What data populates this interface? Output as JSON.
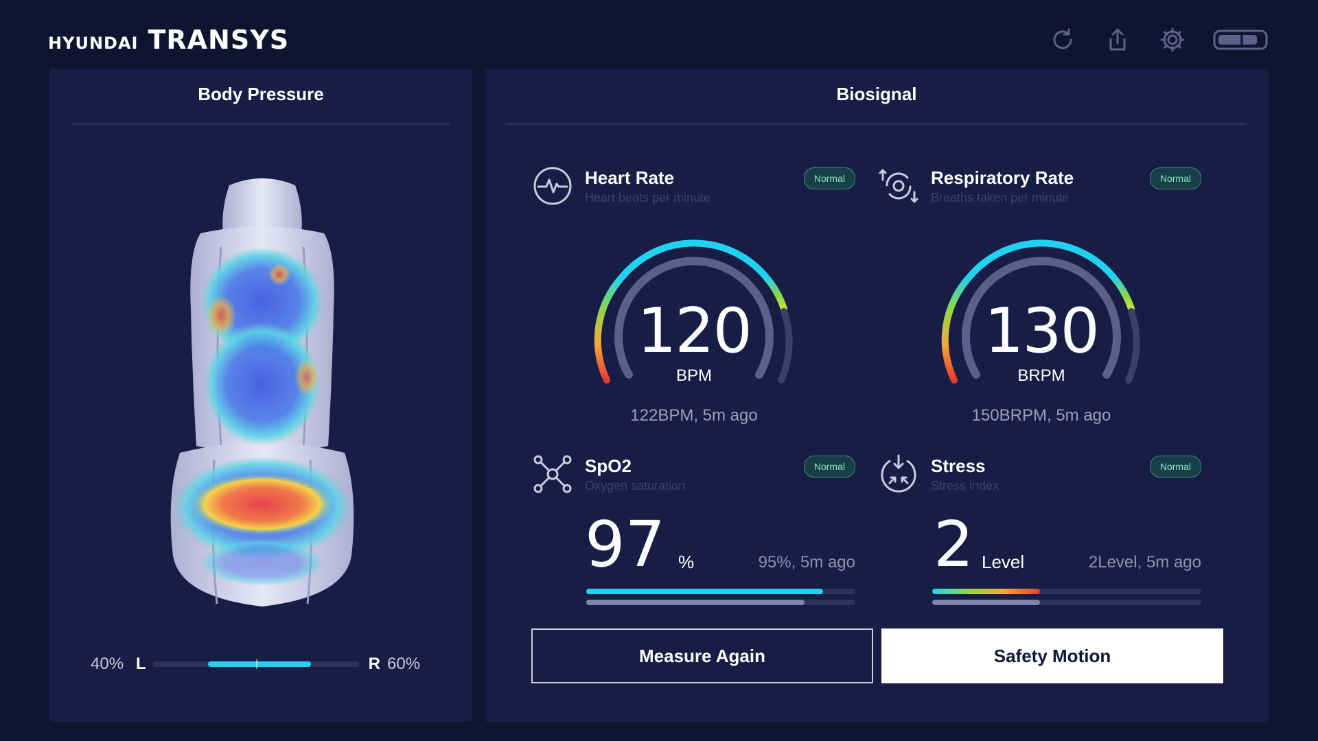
{
  "header": {
    "brand_small": "HYUNDAI",
    "brand_big": "TRANSYS",
    "icons": [
      "refresh-icon",
      "share-icon",
      "gear-icon",
      "battery-icon"
    ]
  },
  "body_pressure": {
    "title": "Body Pressure",
    "left_pct": "40%",
    "left_label": "L",
    "right_label": "R",
    "right_pct": "60%",
    "left_fraction": 0.4
  },
  "biosignal": {
    "title": "Biosignal",
    "heart_rate": {
      "title": "Heart Rate",
      "subtitle": "Heart beats per minute",
      "badge": "Normal",
      "value": "120",
      "unit": "BPM",
      "note": "122BPM, 5m ago"
    },
    "respiratory_rate": {
      "title": "Respiratory Rate",
      "subtitle": "Breaths taken per minute",
      "badge": "Normal",
      "value": "130",
      "unit": "BRPM",
      "note": "150BRPM, 5m ago"
    },
    "spo2": {
      "title": "SpO2",
      "subtitle": "Oxygen saturation",
      "badge": "Normal",
      "value": "97",
      "unit": "%",
      "note": "95%, 5m ago",
      "current_fraction": 0.88,
      "previous_fraction": 0.81
    },
    "stress": {
      "title": "Stress",
      "subtitle": "Stress index",
      "badge": "Normal",
      "value": "2",
      "unit": "Level",
      "note": "2Level, 5m ago",
      "current_fraction": 0.4,
      "previous_fraction": 0.4
    }
  },
  "actions": {
    "measure_again": "Measure Again",
    "safety_motion": "Safety Motion"
  },
  "colors": {
    "background": "#0f1431",
    "panel": "#171d45",
    "accent": "#20d2ef",
    "badge_text": "#8fe7c9"
  }
}
